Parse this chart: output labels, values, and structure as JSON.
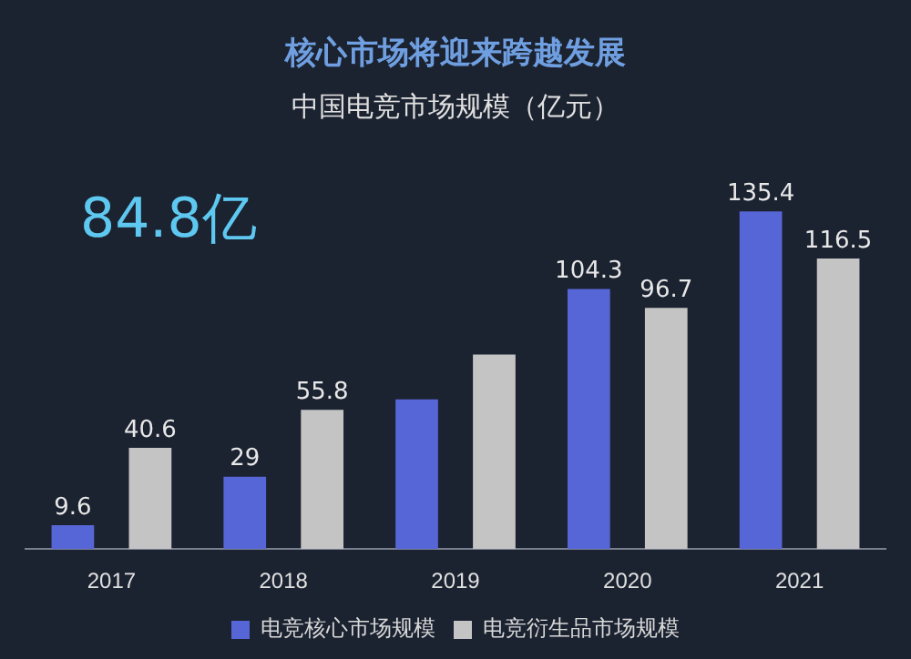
{
  "chart_data": {
    "type": "bar",
    "title": "核心市场将迎来跨越发展",
    "subtitle": "中国电竞市场规模（亿元）",
    "categories": [
      "2017",
      "2018",
      "2019",
      "2020",
      "2021"
    ],
    "series": [
      {
        "name": "电竞核心市场规模",
        "color": "#5766d6",
        "values": [
          9.6,
          29,
          60,
          104.3,
          135.4
        ],
        "value_labels": [
          "9.6",
          "29",
          null,
          "104.3",
          "135.4"
        ]
      },
      {
        "name": "电竞衍生品市场规模",
        "color": "#c4c4c4",
        "values": [
          40.6,
          55.8,
          78,
          96.7,
          116.5
        ],
        "value_labels": [
          "40.6",
          "55.8",
          null,
          "96.7",
          "116.5"
        ]
      }
    ],
    "legend": "bottom",
    "annotations": [
      "84.8亿"
    ]
  }
}
